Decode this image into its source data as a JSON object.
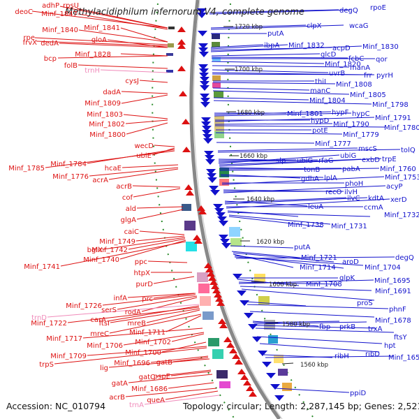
{
  "title": "Methylacidiphilum infernorum V4, complete genome",
  "accession": "Accession: NC_010794",
  "topology": "Topology: circular; Length: 2,287,145 bp; Genes: 2,521",
  "kbp_labels": [
    "1720 kbp",
    "1700 kbp",
    "1680 kbp",
    "1660 kbp",
    "1640 kbp",
    "1620 kbp",
    "1600 kbp",
    "1580 kbp",
    "1560 kbp"
  ],
  "colors": {
    "forward": "#dd1111",
    "reverse": "#1111cc",
    "rna": "#f08aba",
    "backbone": "#888888"
  },
  "left_genes": [
    "deoC",
    "adhP",
    "rpsU",
    "Minf_1847",
    "Minf_1840",
    "Minf_1841",
    "rpe",
    "frvX",
    "dedA",
    "gloA",
    "bcp",
    "Minf_1828",
    "folB",
    "trnH",
    "cysJ",
    "dadA",
    "Minf_1809",
    "Minf_1803",
    "Minf_1802",
    "Minf_1800",
    "wecD",
    "ubiE",
    "Minf_1784",
    "Minf_1785",
    "hcaE",
    "Minf_1776",
    "acrA",
    "acrB",
    "cof",
    "ald",
    "glgA",
    "caiC",
    "Minf_1749",
    "bglX",
    "Minf_1742",
    "Minf_1740",
    "Minf_1741",
    "ppc",
    "htpX",
    "purD",
    "infA",
    "prc",
    "Minf_1726",
    "serS",
    "rodA",
    "trnD",
    "Minf_1722",
    "carA",
    "ftsI",
    "mreB",
    "Minf_1711",
    "mreC",
    "Minf_1717",
    "Minf_1706",
    "Minf_1702",
    "Minf_1700",
    "Minf_1709",
    "trpS",
    "Minf_1696",
    "gatB",
    "lig",
    "gatC",
    "pspE",
    "gatA",
    "Minf_1686",
    "acrB",
    "queA",
    "trnA"
  ],
  "right_genes": [
    "degQ",
    "rpoE",
    "clpX",
    "wcaG",
    "putA",
    "ibpA",
    "Minf_1832",
    "acpD",
    "Minf_1830",
    "glcD",
    "fcbC",
    "qor",
    "Minf_1820",
    "manA",
    "uvrB",
    "frr",
    "pyrH",
    "thiI",
    "Minf_1808",
    "manC",
    "Minf_1805",
    "Minf_1804",
    "Minf_1798",
    "Minf_1801",
    "hypF",
    "hypC",
    "hypD",
    "Minf_1791",
    "Minf_1790",
    "Minf_1780",
    "potE",
    "Minf_1779",
    "Minf_1777",
    "mscS",
    "tolQ",
    "slp",
    "ubiG",
    "rfaG",
    "ubiG",
    "exbD",
    "trpE",
    "tonB",
    "pabA",
    "Minf_1760",
    "gdhA",
    "lplA",
    "phoH",
    "Minf_1753",
    "recO",
    "ilvH",
    "acyP",
    "leuA",
    "ilvC",
    "kdtA",
    "xerD",
    "ccmA",
    "Minf_1732",
    "Minf_1738",
    "Minf_1731",
    "putA",
    "Minf_1721",
    "aroD",
    "Minf_1714",
    "degQ",
    "Minf_1704",
    "glpK",
    "Minf_1708",
    "Minf_1695",
    "Minf_1691",
    "proS",
    "phnF",
    "Minf_1678",
    "fbp",
    "prkB",
    "trxA",
    "ftsY",
    "hpt",
    "ribD",
    "ribH",
    "Minf_1653",
    "ppiD"
  ]
}
